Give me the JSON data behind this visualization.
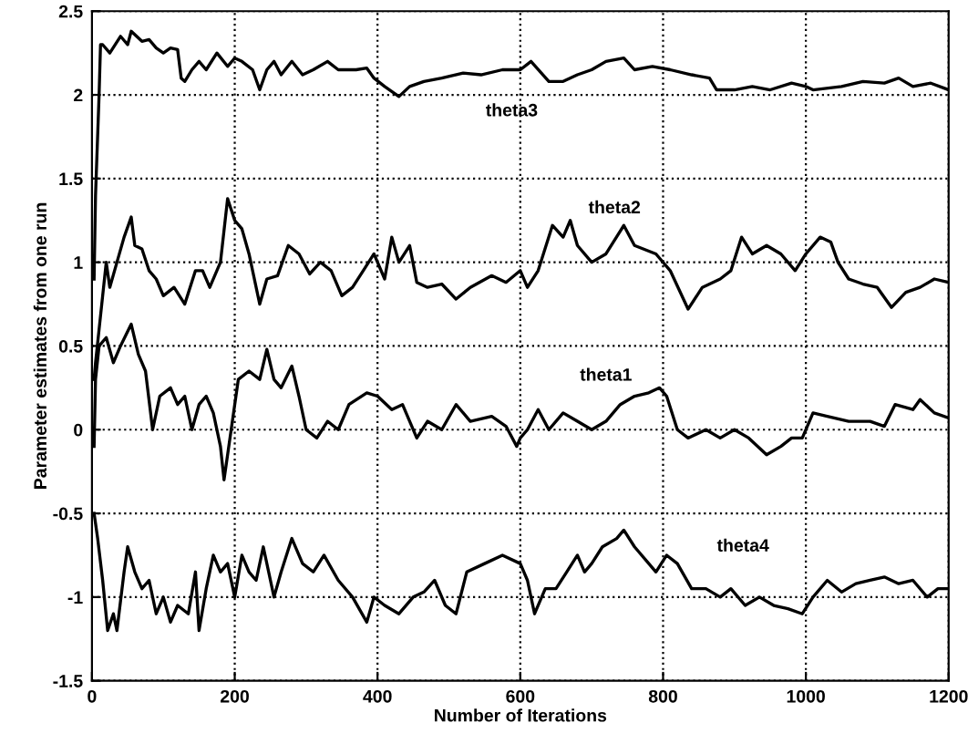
{
  "chart_data": {
    "type": "line",
    "xlabel": "Number of Iterations",
    "ylabel": "Parameter estimates from one run",
    "xlim": [
      0,
      1200
    ],
    "xticks": [
      0,
      200,
      400,
      600,
      800,
      1000,
      1200
    ],
    "ylim": [
      -1.5,
      2.5
    ],
    "yticks": [
      -1.5,
      -1,
      -0.5,
      0,
      0.5,
      1,
      1.5,
      2,
      2.5
    ],
    "grid": true,
    "line_style": "solid",
    "marker": "none",
    "series": [
      {
        "name": "theta3",
        "color": "#000000",
        "x": [
          3,
          5,
          10,
          12,
          15,
          25,
          40,
          50,
          55,
          70,
          80,
          90,
          100,
          110,
          120,
          125,
          130,
          140,
          150,
          160,
          175,
          190,
          200,
          210,
          225,
          235,
          245,
          255,
          265,
          280,
          295,
          310,
          330,
          345,
          370,
          385,
          395,
          410,
          430,
          445,
          465,
          490,
          520,
          545,
          575,
          600,
          615,
          640,
          660,
          680,
          700,
          720,
          745,
          760,
          785,
          810,
          840,
          865,
          875,
          900,
          925,
          950,
          980,
          1000,
          1010,
          1050,
          1080,
          1110,
          1130,
          1150,
          1175,
          1200
        ],
        "values": [
          0.9,
          1.4,
          2.0,
          2.3,
          2.3,
          2.25,
          2.35,
          2.3,
          2.38,
          2.32,
          2.33,
          2.28,
          2.25,
          2.28,
          2.27,
          2.1,
          2.08,
          2.15,
          2.2,
          2.15,
          2.25,
          2.17,
          2.22,
          2.2,
          2.15,
          2.03,
          2.15,
          2.2,
          2.12,
          2.2,
          2.12,
          2.15,
          2.2,
          2.15,
          2.15,
          2.16,
          2.1,
          2.05,
          1.99,
          2.05,
          2.08,
          2.1,
          2.13,
          2.12,
          2.15,
          2.15,
          2.2,
          2.08,
          2.08,
          2.12,
          2.15,
          2.2,
          2.22,
          2.15,
          2.17,
          2.15,
          2.12,
          2.1,
          2.03,
          2.03,
          2.05,
          2.03,
          2.07,
          2.05,
          2.03,
          2.05,
          2.08,
          2.07,
          2.1,
          2.05,
          2.07,
          2.03
        ]
      },
      {
        "name": "theta2",
        "color": "#000000",
        "x": [
          3,
          5,
          10,
          15,
          20,
          25,
          35,
          45,
          55,
          60,
          70,
          80,
          90,
          100,
          115,
          130,
          145,
          155,
          165,
          180,
          190,
          200,
          210,
          220,
          235,
          245,
          260,
          275,
          290,
          305,
          320,
          335,
          350,
          365,
          380,
          395,
          410,
          420,
          430,
          445,
          455,
          470,
          490,
          510,
          530,
          560,
          580,
          600,
          610,
          625,
          645,
          660,
          670,
          680,
          700,
          720,
          745,
          760,
          790,
          810,
          835,
          855,
          880,
          895,
          910,
          925,
          945,
          965,
          985,
          1000,
          1020,
          1035,
          1045,
          1060,
          1080,
          1100,
          1120,
          1140,
          1160,
          1180,
          1200
        ],
        "values": [
          0.3,
          0.4,
          0.6,
          0.8,
          1.0,
          0.85,
          1.0,
          1.15,
          1.27,
          1.1,
          1.08,
          0.95,
          0.9,
          0.8,
          0.85,
          0.75,
          0.95,
          0.95,
          0.85,
          1.0,
          1.38,
          1.25,
          1.2,
          1.05,
          0.75,
          0.9,
          0.92,
          1.1,
          1.05,
          0.93,
          1.0,
          0.95,
          0.8,
          0.85,
          0.95,
          1.05,
          0.9,
          1.15,
          1.0,
          1.1,
          0.88,
          0.85,
          0.87,
          0.78,
          0.85,
          0.92,
          0.88,
          0.95,
          0.85,
          0.95,
          1.22,
          1.15,
          1.25,
          1.1,
          1.0,
          1.05,
          1.22,
          1.1,
          1.05,
          0.95,
          0.72,
          0.85,
          0.9,
          0.95,
          1.15,
          1.05,
          1.1,
          1.05,
          0.95,
          1.05,
          1.15,
          1.12,
          1.0,
          0.9,
          0.87,
          0.85,
          0.73,
          0.82,
          0.85,
          0.9,
          0.88
        ]
      },
      {
        "name": "theta1",
        "color": "#000000",
        "x": [
          3,
          5,
          10,
          20,
          30,
          40,
          55,
          65,
          75,
          85,
          95,
          110,
          120,
          130,
          140,
          150,
          160,
          170,
          180,
          185,
          195,
          205,
          220,
          235,
          245,
          255,
          265,
          280,
          290,
          300,
          315,
          330,
          345,
          360,
          385,
          400,
          420,
          435,
          455,
          470,
          490,
          510,
          530,
          560,
          580,
          595,
          600,
          610,
          625,
          640,
          660,
          680,
          700,
          720,
          740,
          760,
          780,
          795,
          805,
          820,
          835,
          860,
          880,
          900,
          920,
          945,
          965,
          980,
          995,
          1005,
          1010,
          1030,
          1060,
          1090,
          1110,
          1125,
          1150,
          1160,
          1180,
          1200
        ],
        "values": [
          -0.1,
          0.3,
          0.5,
          0.55,
          0.4,
          0.5,
          0.63,
          0.45,
          0.35,
          0.0,
          0.2,
          0.25,
          0.15,
          0.2,
          0.0,
          0.15,
          0.2,
          0.1,
          -0.1,
          -0.3,
          0.0,
          0.3,
          0.35,
          0.3,
          0.48,
          0.3,
          0.25,
          0.38,
          0.2,
          0.0,
          -0.05,
          0.05,
          0.0,
          0.15,
          0.22,
          0.2,
          0.12,
          0.15,
          -0.05,
          0.05,
          0.0,
          0.15,
          0.05,
          0.08,
          0.02,
          -0.1,
          -0.05,
          0.0,
          0.12,
          0.0,
          0.1,
          0.05,
          0.0,
          0.05,
          0.15,
          0.2,
          0.22,
          0.25,
          0.2,
          0.0,
          -0.05,
          0.0,
          -0.05,
          0.0,
          -0.05,
          -0.15,
          -0.1,
          -0.05,
          -0.05,
          0.05,
          0.1,
          0.08,
          0.05,
          0.05,
          0.02,
          0.15,
          0.12,
          0.18,
          0.1,
          0.07
        ]
      },
      {
        "name": "theta4",
        "color": "#000000",
        "x": [
          3,
          8,
          15,
          22,
          30,
          35,
          45,
          50,
          60,
          70,
          80,
          90,
          100,
          110,
          120,
          135,
          145,
          150,
          160,
          170,
          180,
          190,
          200,
          210,
          220,
          230,
          240,
          255,
          265,
          280,
          295,
          310,
          325,
          345,
          365,
          385,
          395,
          410,
          430,
          450,
          465,
          480,
          495,
          510,
          525,
          550,
          575,
          600,
          610,
          620,
          635,
          650,
          665,
          680,
          690,
          700,
          715,
          735,
          745,
          760,
          780,
          790,
          805,
          820,
          840,
          860,
          880,
          895,
          915,
          935,
          955,
          975,
          995,
          1010,
          1030,
          1050,
          1070,
          1090,
          1110,
          1130,
          1150,
          1170,
          1185,
          1200
        ],
        "values": [
          -0.5,
          -0.65,
          -0.9,
          -1.2,
          -1.1,
          -1.2,
          -0.85,
          -0.7,
          -0.85,
          -0.95,
          -0.9,
          -1.1,
          -1.0,
          -1.15,
          -1.05,
          -1.1,
          -0.85,
          -1.2,
          -0.95,
          -0.75,
          -0.85,
          -0.8,
          -1.0,
          -0.75,
          -0.85,
          -0.9,
          -0.7,
          -1.0,
          -0.85,
          -0.65,
          -0.8,
          -0.85,
          -0.75,
          -0.9,
          -1.0,
          -1.15,
          -1.0,
          -1.05,
          -1.1,
          -1.0,
          -0.97,
          -0.9,
          -1.05,
          -1.1,
          -0.85,
          -0.8,
          -0.75,
          -0.8,
          -0.9,
          -1.1,
          -0.95,
          -0.95,
          -0.85,
          -0.75,
          -0.85,
          -0.8,
          -0.7,
          -0.65,
          -0.6,
          -0.7,
          -0.8,
          -0.85,
          -0.75,
          -0.8,
          -0.95,
          -0.95,
          -1.0,
          -0.95,
          -1.05,
          -1.0,
          -1.05,
          -1.07,
          -1.1,
          -1.0,
          -0.9,
          -0.97,
          -0.92,
          -0.9,
          -0.88,
          -0.92,
          -0.9,
          -1.0,
          -0.95,
          -0.95
        ]
      }
    ]
  }
}
